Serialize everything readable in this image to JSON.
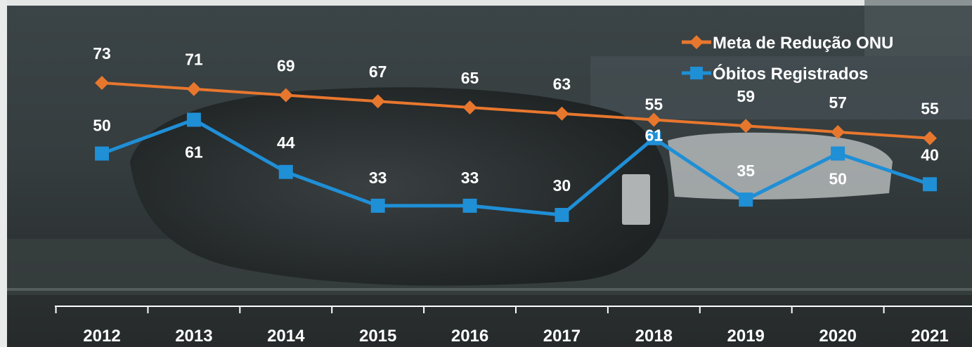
{
  "chart_data": {
    "type": "line",
    "title": "",
    "xlabel": "",
    "ylabel": "",
    "categories": [
      "2012",
      "2013",
      "2014",
      "2015",
      "2016",
      "2017",
      "2018",
      "2019",
      "2020",
      "2021"
    ],
    "series": [
      {
        "name": "Meta de Redução ONU",
        "color": "#e8772e",
        "marker": "diamond",
        "values": [
          73,
          71,
          69,
          67,
          65,
          63,
          61,
          59,
          57,
          55
        ],
        "labels": [
          "73",
          "71",
          "69",
          "67",
          "65",
          "63",
          "61",
          "59",
          "57",
          "55"
        ]
      },
      {
        "name": "Óbitos Registrados",
        "color": "#1f8fd6",
        "marker": "square",
        "values": [
          50,
          61,
          44,
          33,
          33,
          30,
          55,
          35,
          50,
          40
        ],
        "labels": [
          "50",
          "61",
          "44",
          "33",
          "33",
          "30",
          "55",
          "35",
          "50",
          "40"
        ]
      }
    ],
    "ylim": [
      0,
      90
    ],
    "grid": false,
    "legend_position": "top-right",
    "background": "photo of overturned car on a road (rendered as dark stylized scene)"
  }
}
